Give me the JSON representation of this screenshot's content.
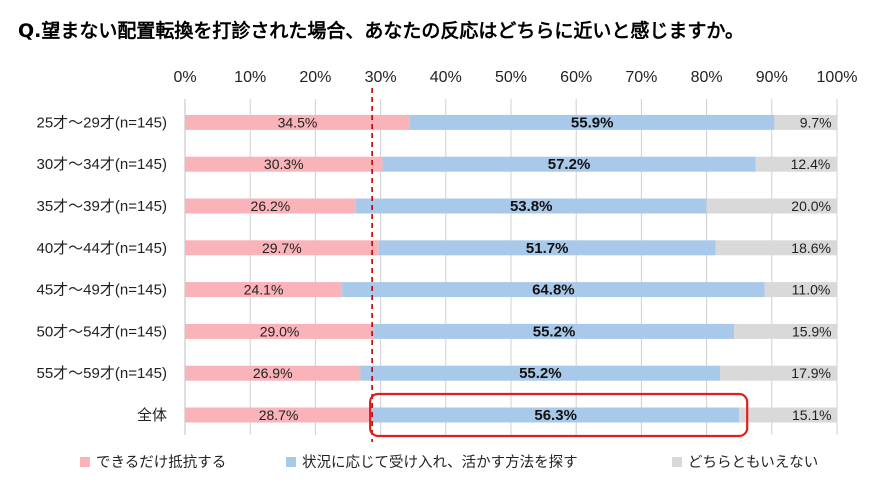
{
  "chart_data": {
    "type": "bar",
    "orientation": "horizontal",
    "stacked": "percent",
    "title": "Q.望まない配置転換を打診された場合、あなたの反応はどちらに近いと感じますか。",
    "xlabel": "",
    "ylabel": "",
    "xlim": [
      0,
      100
    ],
    "x_ticks": [
      "0%",
      "10%",
      "20%",
      "30%",
      "40%",
      "50%",
      "60%",
      "70%",
      "80%",
      "90%",
      "100%"
    ],
    "categories": [
      "25才〜29才(n=145)",
      "30才〜34才(n=145)",
      "35才〜39才(n=145)",
      "40才〜44才(n=145)",
      "45才〜49才(n=145)",
      "50才〜54才(n=145)",
      "55才〜59才(n=145)",
      "全体"
    ],
    "series": [
      {
        "name": "できるだけ抵抗する",
        "color": "#f9b3b9",
        "labels": [
          "34.5%",
          "30.3%",
          "26.2%",
          "29.7%",
          "24.1%",
          "29.0%",
          "26.9%",
          "28.7%"
        ],
        "values": [
          34.5,
          30.3,
          26.2,
          29.7,
          24.1,
          29.0,
          26.9,
          28.7
        ]
      },
      {
        "name": "状況に応じて受け入れ、活かす方法を探す",
        "color": "#a9c9ea",
        "labels": [
          "55.9%",
          "57.2%",
          "53.8%",
          "51.7%",
          "64.8%",
          "55.2%",
          "55.2%",
          "56.3%"
        ],
        "values": [
          55.9,
          57.2,
          53.8,
          51.7,
          64.8,
          55.2,
          55.2,
          56.3
        ]
      },
      {
        "name": "どちらともいえない",
        "color": "#d9d9d9",
        "labels": [
          "9.7%",
          "12.4%",
          "20.0%",
          "18.6%",
          "11.0%",
          "15.9%",
          "17.9%",
          "15.1%"
        ],
        "values": [
          9.7,
          12.4,
          20.0,
          18.6,
          11.0,
          15.9,
          17.9,
          15.1
        ]
      }
    ],
    "reference_line": {
      "value": 28.7,
      "style": "dashed",
      "color": "#c00000"
    },
    "highlight": {
      "category": "全体",
      "series": "状況に応じて受け入れ、活かす方法を探す",
      "color": "#e02020"
    },
    "grid": true,
    "legend": "bottom"
  }
}
